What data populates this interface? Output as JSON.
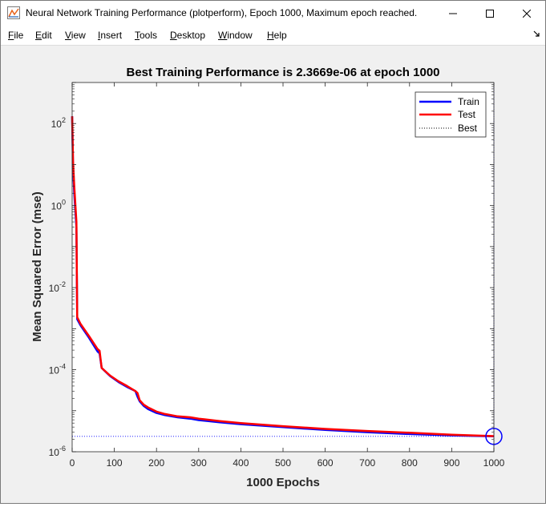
{
  "window": {
    "title": "Neural Network Training Performance (plotperform), Epoch 1000, Maximum epoch reached.",
    "controls": {
      "minimize": "—",
      "maximize": "☐",
      "close": "✕"
    }
  },
  "menu": [
    {
      "label": "File",
      "mnemonic": "F",
      "rest": "ile"
    },
    {
      "label": "Edit",
      "mnemonic": "E",
      "rest": "dit"
    },
    {
      "label": "View",
      "mnemonic": "V",
      "rest": "iew"
    },
    {
      "label": "Insert",
      "mnemonic": "I",
      "rest": "nsert"
    },
    {
      "label": "Tools",
      "mnemonic": "T",
      "rest": "ools"
    },
    {
      "label": "Desktop",
      "mnemonic": "D",
      "rest": "esktop"
    },
    {
      "label": "Window",
      "mnemonic": "W",
      "rest": "indow"
    },
    {
      "label": "Help",
      "mnemonic": "H",
      "rest": "elp"
    }
  ],
  "dock_icon": "dock-arrow-icon",
  "chart_data": {
    "type": "line",
    "title": "Best Training Performance is 2.3669e-06 at epoch 1000",
    "xlabel": "1000 Epochs",
    "ylabel": "Mean Squared Error  (mse)",
    "xlim": [
      0,
      1000
    ],
    "ylim": [
      1e-06,
      1000
    ],
    "yscale": "log",
    "xticks": [
      0,
      100,
      200,
      300,
      400,
      500,
      600,
      700,
      800,
      900,
      1000
    ],
    "yticks": [
      {
        "value": 1e-06,
        "base": "10",
        "exp": "-6"
      },
      {
        "value": 0.0001,
        "base": "10",
        "exp": "-4"
      },
      {
        "value": 0.01,
        "base": "10",
        "exp": "-2"
      },
      {
        "value": 1,
        "base": "10",
        "exp": "0"
      },
      {
        "value": 100,
        "base": "10",
        "exp": "2"
      }
    ],
    "grid": false,
    "legend_position": "top-right",
    "series": [
      {
        "name": "Train",
        "color": "#0000ff",
        "x": [
          0,
          2,
          5,
          10,
          12,
          20,
          40,
          60,
          65,
          70,
          90,
          110,
          130,
          150,
          155,
          160,
          170,
          180,
          200,
          220,
          250,
          280,
          300,
          350,
          400,
          500,
          600,
          700,
          800,
          900,
          1000
        ],
        "y": [
          150,
          8,
          2,
          0.3,
          0.0017,
          0.0012,
          0.0006,
          0.00028,
          0.00025,
          0.00011,
          7e-05,
          5e-05,
          3.8e-05,
          3e-05,
          2.2e-05,
          1.7e-05,
          1.3e-05,
          1.1e-05,
          8.8e-06,
          7.8e-06,
          6.9e-06,
          6.4e-06,
          5.9e-06,
          5.2e-06,
          4.7e-06,
          4e-06,
          3.4e-06,
          3e-06,
          2.7e-06,
          2.5e-06,
          2.3669e-06
        ]
      },
      {
        "name": "Test",
        "color": "#ff0000",
        "x": [
          0,
          2,
          5,
          10,
          12,
          20,
          40,
          60,
          65,
          70,
          90,
          110,
          130,
          150,
          155,
          160,
          170,
          180,
          200,
          220,
          250,
          280,
          300,
          350,
          400,
          500,
          600,
          700,
          800,
          900,
          1000
        ],
        "y": [
          150,
          12,
          3,
          0.4,
          0.0019,
          0.0013,
          0.00066,
          0.00032,
          0.00029,
          0.00011,
          7.2e-05,
          5.2e-05,
          4e-05,
          3e-05,
          2.7e-05,
          1.8e-05,
          1.4e-05,
          1.2e-05,
          9.5e-06,
          8.3e-06,
          7.3e-06,
          6.9e-06,
          6.4e-06,
          5.6e-06,
          5e-06,
          4.2e-06,
          3.6e-06,
          3.2e-06,
          2.9e-06,
          2.6e-06,
          2.4e-06
        ]
      },
      {
        "name": "Best",
        "color": "#0000ff",
        "style": "dotted",
        "horizontal_y": 2.3669e-06,
        "vertical_x": 1000
      }
    ],
    "best_marker": {
      "x": 1000,
      "y": 2.3669e-06,
      "color": "#0000ff"
    }
  }
}
